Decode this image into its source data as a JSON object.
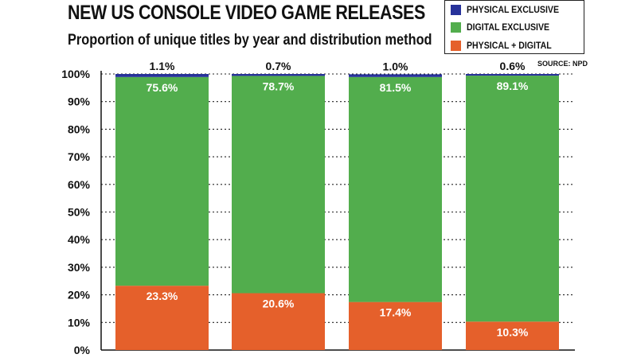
{
  "title": "NEW US CONSOLE VIDEO GAME RELEASES",
  "subtitle": "Proportion of unique titles by year and distribution method",
  "source": "SOURCE: NPD",
  "colors": {
    "physical_exclusive": "#27329a",
    "digital_exclusive": "#52ad4d",
    "physical_digital": "#e5602b",
    "grid": "#222222",
    "axis": "#111111"
  },
  "legend": [
    {
      "label": "PHYSICAL EXCLUSIVE",
      "color": "#27329a"
    },
    {
      "label": "DIGITAL EXCLUSIVE",
      "color": "#52ad4d"
    },
    {
      "label": "PHYSICAL + DIGITAL",
      "color": "#e5602b"
    }
  ],
  "chart_data": {
    "type": "bar",
    "stacked": true,
    "categories": [
      "",
      "",
      "",
      ""
    ],
    "title": "NEW US CONSOLE VIDEO GAME RELEASES",
    "subtitle": "Proportion of unique titles by year and distribution method",
    "ylabel": "",
    "xlabel": "",
    "ylim": [
      0,
      100
    ],
    "yticks": [
      "0%",
      "10%",
      "20%",
      "30%",
      "40%",
      "50%",
      "60%",
      "70%",
      "80%",
      "90%",
      "100%"
    ],
    "grid": true,
    "legend_position": "top-right",
    "series": [
      {
        "name": "PHYSICAL + DIGITAL",
        "color": "#e5602b",
        "values": [
          23.3,
          20.6,
          17.4,
          10.3
        ],
        "labels": [
          "23.3%",
          "20.6%",
          "17.4%",
          "10.3%"
        ]
      },
      {
        "name": "DIGITAL EXCLUSIVE",
        "color": "#52ad4d",
        "values": [
          75.6,
          78.7,
          81.5,
          89.1
        ],
        "labels": [
          "75.6%",
          "78.7%",
          "81.5%",
          "89.1%"
        ]
      },
      {
        "name": "PHYSICAL EXCLUSIVE",
        "color": "#27329a",
        "values": [
          1.1,
          0.7,
          1.0,
          0.6
        ],
        "labels": [
          "1.1%",
          "0.7%",
          "1.0%",
          "0.6%"
        ]
      }
    ]
  }
}
